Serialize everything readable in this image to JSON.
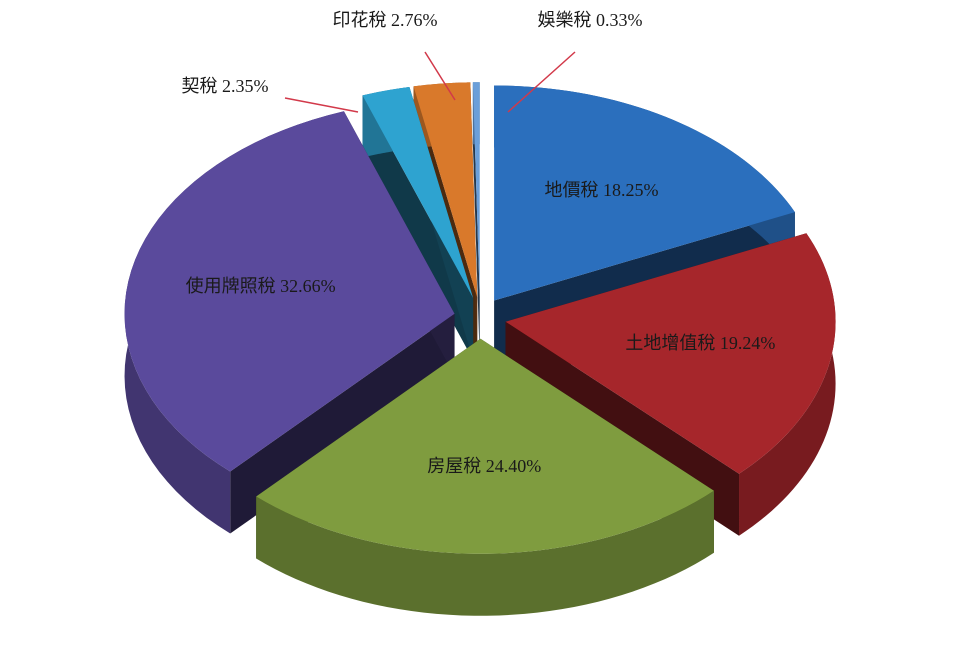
{
  "chart_data": {
    "type": "pie",
    "categories": [
      "地價稅",
      "土地增值稅",
      "房屋稅",
      "使用牌照稅",
      "契稅",
      "印花稅",
      "娛樂稅"
    ],
    "values": [
      18.25,
      19.24,
      24.4,
      32.66,
      2.35,
      2.76,
      0.33
    ],
    "value_labels": [
      "18.25%",
      "19.24%",
      "24.40%",
      "32.66%",
      "2.35%",
      "2.76%",
      "0.33%"
    ],
    "colors": [
      "#2b6fbd",
      "#a6262b",
      "#7f9c3f",
      "#5a4a9c",
      "#2ea3d0",
      "#d9792b",
      "#6b9fd9"
    ]
  }
}
